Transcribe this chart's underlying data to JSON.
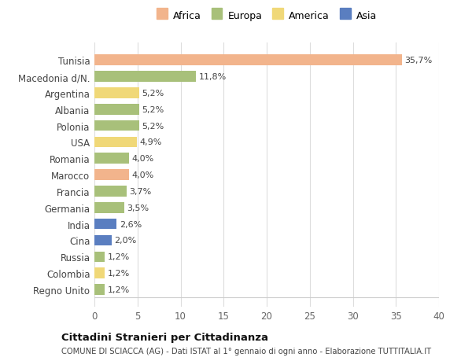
{
  "countries": [
    "Tunisia",
    "Macedonia d/N.",
    "Argentina",
    "Albania",
    "Polonia",
    "USA",
    "Romania",
    "Marocco",
    "Francia",
    "Germania",
    "India",
    "Cina",
    "Russia",
    "Colombia",
    "Regno Unito"
  ],
  "values": [
    35.7,
    11.8,
    5.2,
    5.2,
    5.2,
    4.9,
    4.0,
    4.0,
    3.7,
    3.5,
    2.6,
    2.0,
    1.2,
    1.2,
    1.2
  ],
  "labels": [
    "35,7%",
    "11,8%",
    "5,2%",
    "5,2%",
    "5,2%",
    "4,9%",
    "4,0%",
    "4,0%",
    "3,7%",
    "3,5%",
    "2,6%",
    "2,0%",
    "1,2%",
    "1,2%",
    "1,2%"
  ],
  "continents": [
    "Africa",
    "Europa",
    "America",
    "Europa",
    "Europa",
    "America",
    "Europa",
    "Africa",
    "Europa",
    "Europa",
    "Asia",
    "Asia",
    "Europa",
    "America",
    "Europa"
  ],
  "colors": {
    "Africa": "#F2B48C",
    "Europa": "#A8C07A",
    "America": "#F0D878",
    "Asia": "#5A7EC0"
  },
  "xlim": [
    0,
    40
  ],
  "xticks": [
    0,
    5,
    10,
    15,
    20,
    25,
    30,
    35,
    40
  ],
  "title": "Cittadini Stranieri per Cittadinanza",
  "subtitle": "COMUNE DI SCIACCA (AG) - Dati ISTAT al 1° gennaio di ogni anno - Elaborazione TUTTITALIA.IT",
  "background_color": "#ffffff",
  "plot_background": "#ffffff",
  "grid_color": "#dddddd",
  "bar_height": 0.65,
  "legend_order": [
    "Africa",
    "Europa",
    "America",
    "Asia"
  ]
}
